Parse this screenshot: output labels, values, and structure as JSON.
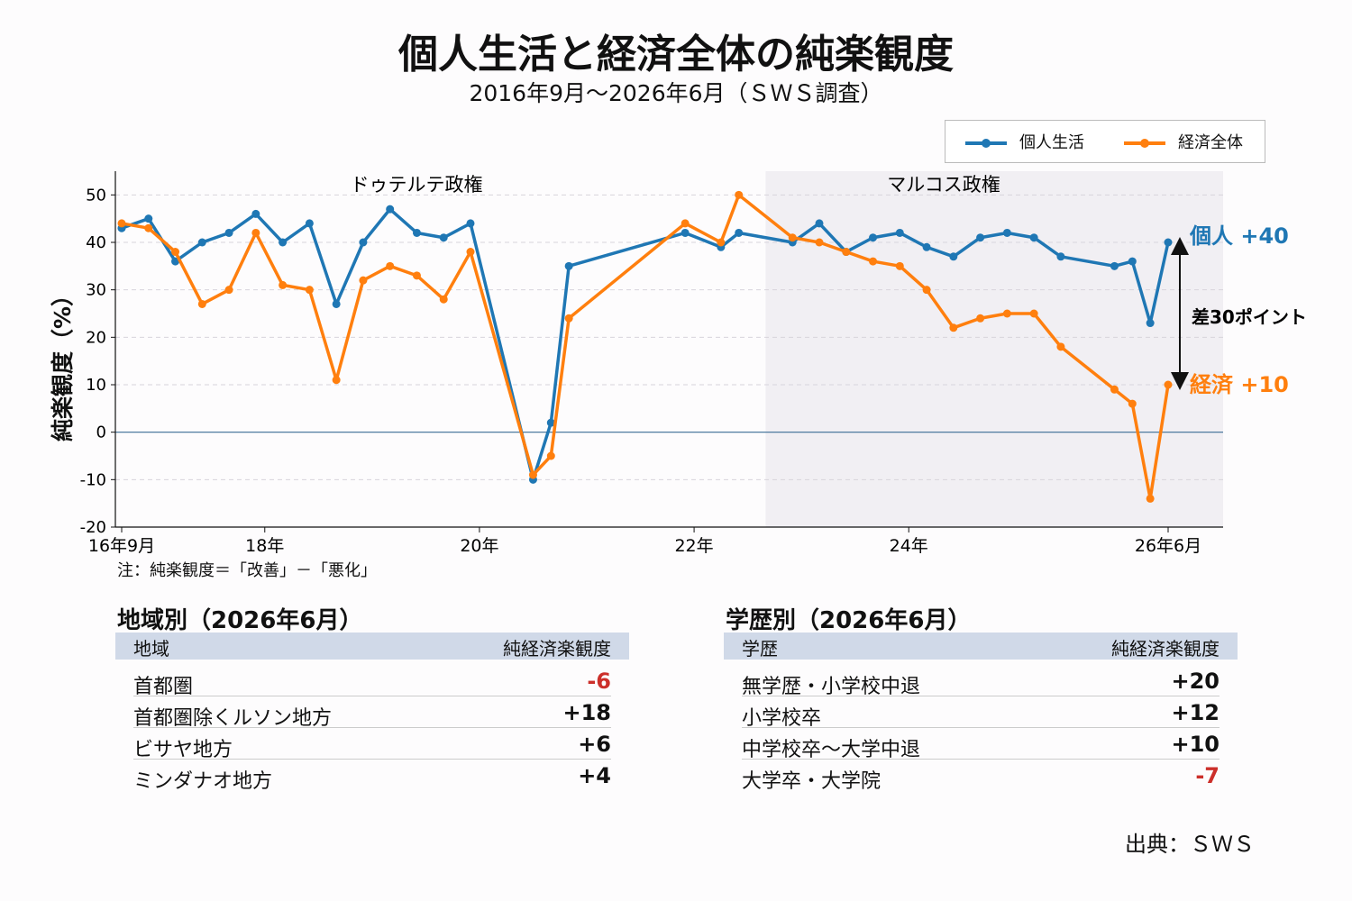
{
  "title": "個人生活と経済全体の純楽観度",
  "subtitle": "2016年9月～2026年6月（ＳＷＳ調査）",
  "legend": {
    "personal": "個人生活",
    "economy": "経済全体"
  },
  "colors": {
    "personal": "#1f77b4",
    "economy": "#ff7f0e",
    "negative": "#cc2f2a",
    "shade": "#f1eff3",
    "table_header": "#d0d9e8"
  },
  "periods": {
    "duterte": "ドゥテルテ政権",
    "marcos": "マルコス政権"
  },
  "annotations": {
    "personal_end": "個人 +40",
    "economy_end": "経済 +10",
    "gap": "差30ポイント"
  },
  "ylabel": "純楽観度（%）",
  "note": "注：純楽観度＝「改善」－「悪化」",
  "chart_data": {
    "type": "line",
    "x_ticks": [
      "16年9月",
      "18年",
      "20年",
      "22年",
      "24年",
      "26年6月"
    ],
    "x_tick_dates": [
      "2016-09",
      "2018-01",
      "2020-01",
      "2022-01",
      "2024-01",
      "2026-06"
    ],
    "ylim": [
      -20,
      55
    ],
    "y_ticks": [
      -20,
      -10,
      0,
      10,
      20,
      30,
      40,
      50
    ],
    "grid": true,
    "legend_position": "top-right",
    "shaded_period": {
      "label": "マルコス政権",
      "from": "2022-09",
      "to": "2026-11"
    },
    "series": [
      {
        "name": "個人生活",
        "points": [
          [
            "2016-09",
            43
          ],
          [
            "2016-12",
            45
          ],
          [
            "2017-03",
            36
          ],
          [
            "2017-06",
            40
          ],
          [
            "2017-09",
            42
          ],
          [
            "2017-12",
            46
          ],
          [
            "2018-03",
            40
          ],
          [
            "2018-06",
            44
          ],
          [
            "2018-09",
            27
          ],
          [
            "2018-12",
            40
          ],
          [
            "2019-03",
            47
          ],
          [
            "2019-06",
            42
          ],
          [
            "2019-09",
            41
          ],
          [
            "2019-12",
            44
          ],
          [
            "2020-07",
            -10
          ],
          [
            "2020-09",
            2
          ],
          [
            "2020-11",
            35
          ],
          [
            "2021-12",
            42
          ],
          [
            "2022-04",
            39
          ],
          [
            "2022-06",
            42
          ],
          [
            "2022-12",
            40
          ],
          [
            "2023-03",
            44
          ],
          [
            "2023-06",
            38
          ],
          [
            "2023-09",
            41
          ],
          [
            "2023-12",
            42
          ],
          [
            "2024-03",
            39
          ],
          [
            "2024-06",
            37
          ],
          [
            "2024-09",
            41
          ],
          [
            "2024-12",
            42
          ],
          [
            "2025-03",
            41
          ],
          [
            "2025-06",
            37
          ],
          [
            "2025-12",
            35
          ],
          [
            "2026-02",
            36
          ],
          [
            "2026-04",
            23
          ],
          [
            "2026-06",
            40
          ]
        ]
      },
      {
        "name": "経済全体",
        "points": [
          [
            "2016-09",
            44
          ],
          [
            "2016-12",
            43
          ],
          [
            "2017-03",
            38
          ],
          [
            "2017-06",
            27
          ],
          [
            "2017-09",
            30
          ],
          [
            "2017-12",
            42
          ],
          [
            "2018-03",
            31
          ],
          [
            "2018-06",
            30
          ],
          [
            "2018-09",
            11
          ],
          [
            "2018-12",
            32
          ],
          [
            "2019-03",
            35
          ],
          [
            "2019-06",
            33
          ],
          [
            "2019-09",
            28
          ],
          [
            "2019-12",
            38
          ],
          [
            "2020-07",
            -9
          ],
          [
            "2020-09",
            -5
          ],
          [
            "2020-11",
            24
          ],
          [
            "2021-12",
            44
          ],
          [
            "2022-04",
            40
          ],
          [
            "2022-06",
            50
          ],
          [
            "2022-12",
            41
          ],
          [
            "2023-03",
            40
          ],
          [
            "2023-06",
            38
          ],
          [
            "2023-09",
            36
          ],
          [
            "2023-12",
            35
          ],
          [
            "2024-03",
            30
          ],
          [
            "2024-06",
            22
          ],
          [
            "2024-09",
            24
          ],
          [
            "2024-12",
            25
          ],
          [
            "2025-03",
            25
          ],
          [
            "2025-06",
            18
          ],
          [
            "2025-12",
            9
          ],
          [
            "2026-02",
            6
          ],
          [
            "2026-04",
            -14
          ],
          [
            "2026-06",
            10
          ]
        ]
      }
    ]
  },
  "region_table": {
    "title": "地域別（2026年6月）",
    "col1": "地域",
    "col2": "純経済楽観度",
    "rows": [
      {
        "label": "首都圏",
        "value": "-6"
      },
      {
        "label": "首都圏除くルソン地方",
        "value": "+18"
      },
      {
        "label": "ビサヤ地方",
        "value": "+6"
      },
      {
        "label": "ミンダナオ地方",
        "value": "+4"
      }
    ]
  },
  "education_table": {
    "title": "学歴別（2026年6月）",
    "col1": "学歴",
    "col2": "純経済楽観度",
    "rows": [
      {
        "label": "無学歴・小学校中退",
        "value": "+20"
      },
      {
        "label": "小学校卒",
        "value": "+12"
      },
      {
        "label": "中学校卒～大学中退",
        "value": "+10"
      },
      {
        "label": "大学卒・大学院",
        "value": "-7"
      }
    ]
  },
  "source": "出典：ＳＷＳ"
}
